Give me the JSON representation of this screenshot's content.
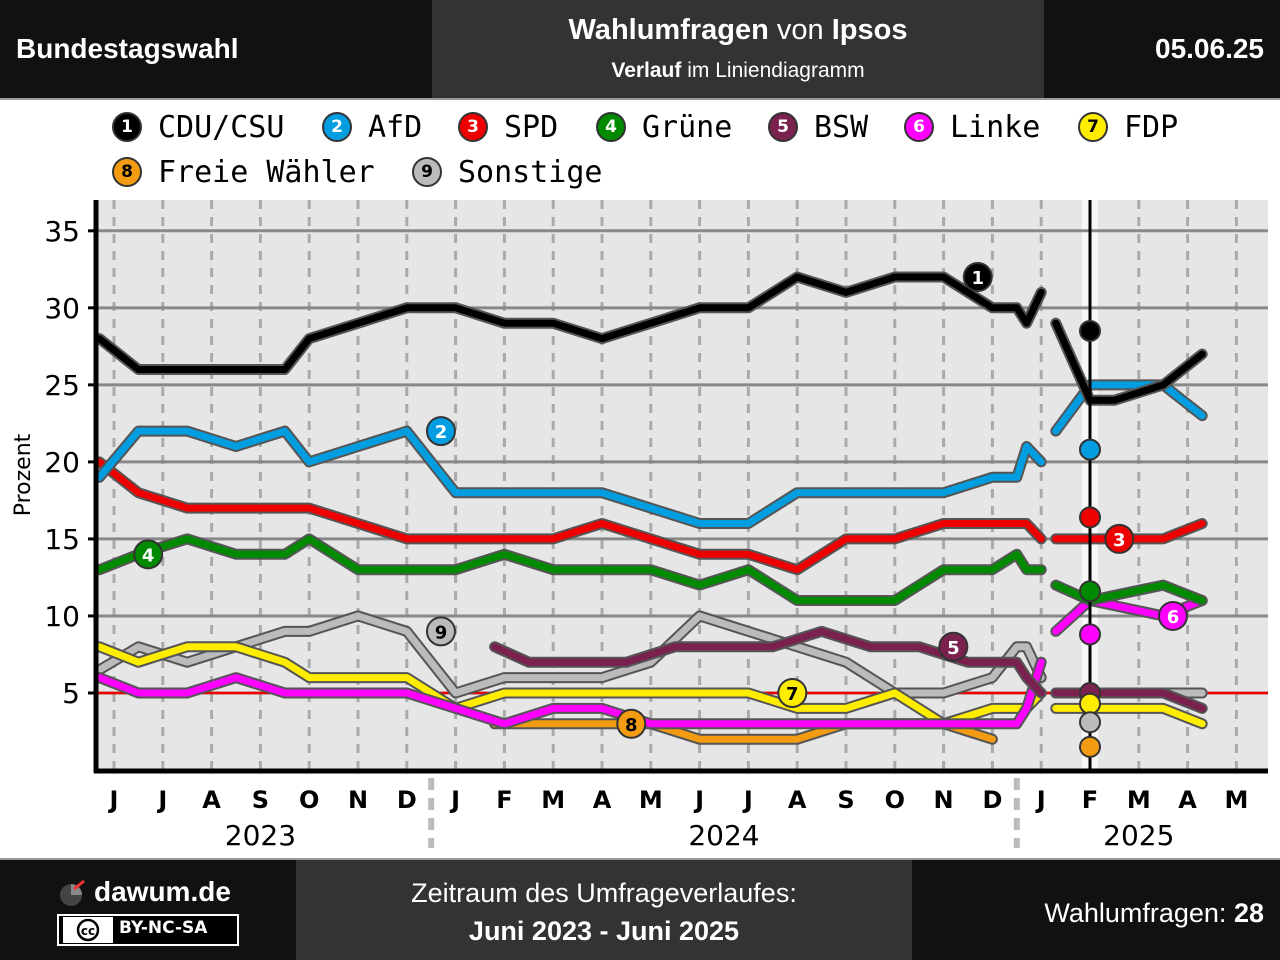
{
  "header": {
    "left": "Bundestagswahl",
    "title_bold_1": "Wahlumfragen",
    "title_mid": " von ",
    "title_bold_2": "Ipsos",
    "sub_bold": "Verlauf",
    "sub_rest": " im Liniendiagramm",
    "date": "05.06.25"
  },
  "footer": {
    "brand": "dawum.de",
    "license": "BY-NC-SA",
    "license_icon": "cc-icon",
    "period_label": "Zeitraum des Umfrageverlaufes:",
    "period_value": "Juni 2023 - Juni 2025",
    "count_label": "Wahlumfragen: ",
    "count_value": "28"
  },
  "chart_data": {
    "type": "line",
    "ylabel": "Prozent",
    "ylim": [
      0,
      37
    ],
    "yticks": [
      5,
      10,
      15,
      20,
      25,
      30,
      35
    ],
    "threshold": 5,
    "election_marker": "2025-02",
    "months": [
      "J",
      "J",
      "A",
      "S",
      "O",
      "N",
      "D",
      "J",
      "F",
      "M",
      "A",
      "M",
      "J",
      "J",
      "A",
      "S",
      "O",
      "N",
      "D",
      "J",
      "F",
      "M",
      "A",
      "M"
    ],
    "years": [
      {
        "label": "2023",
        "start": 0,
        "end": 6
      },
      {
        "label": "2024",
        "start": 7,
        "end": 18
      },
      {
        "label": "2025",
        "start": 19,
        "end": 23
      }
    ],
    "series": [
      {
        "num": "1",
        "name": "CDU/CSU",
        "color": "#000000",
        "text_color": "#ffffff",
        "pre": [
          [
            -0.3,
            28
          ],
          [
            0.5,
            26
          ],
          [
            1.5,
            26
          ],
          [
            2.5,
            26
          ],
          [
            3.5,
            26
          ],
          [
            4,
            28
          ],
          [
            5,
            29
          ],
          [
            6,
            30
          ],
          [
            7,
            30
          ],
          [
            8,
            29
          ],
          [
            9,
            29
          ],
          [
            10,
            28
          ],
          [
            11,
            29
          ],
          [
            12,
            30
          ],
          [
            13,
            30
          ],
          [
            14,
            32
          ],
          [
            15,
            31
          ],
          [
            16,
            32
          ],
          [
            17,
            32
          ],
          [
            18,
            30
          ],
          [
            18.5,
            30
          ],
          [
            18.7,
            29
          ],
          [
            19,
            31
          ]
        ],
        "post": [
          [
            19.3,
            29
          ],
          [
            20,
            24
          ],
          [
            20.5,
            24
          ],
          [
            21.5,
            25
          ],
          [
            22.3,
            27
          ]
        ],
        "result": 28.5,
        "label_at": [
          17.7,
          32
        ]
      },
      {
        "num": "2",
        "name": "AfD",
        "color": "#009ee0",
        "text_color": "#ffffff",
        "pre": [
          [
            -0.3,
            19
          ],
          [
            0.5,
            22
          ],
          [
            1.5,
            22
          ],
          [
            2.5,
            21
          ],
          [
            3.5,
            22
          ],
          [
            4,
            20
          ],
          [
            5,
            21
          ],
          [
            6,
            22
          ],
          [
            7,
            18
          ],
          [
            8,
            18
          ],
          [
            9,
            18
          ],
          [
            10,
            18
          ],
          [
            11,
            17
          ],
          [
            12,
            16
          ],
          [
            13,
            16
          ],
          [
            14,
            18
          ],
          [
            15,
            18
          ],
          [
            16,
            18
          ],
          [
            17,
            18
          ],
          [
            18,
            19
          ],
          [
            18.5,
            19
          ],
          [
            18.7,
            21
          ],
          [
            19,
            20
          ]
        ],
        "post": [
          [
            19.3,
            22
          ],
          [
            20,
            25
          ],
          [
            21.5,
            25
          ],
          [
            22.3,
            23
          ]
        ],
        "result": 20.8,
        "label_at": [
          6.7,
          22
        ]
      },
      {
        "num": "3",
        "name": "SPD",
        "color": "#ee0000",
        "text_color": "#ffffff",
        "pre": [
          [
            -0.3,
            20
          ],
          [
            0.5,
            18
          ],
          [
            1.5,
            17
          ],
          [
            2.5,
            17
          ],
          [
            3.5,
            17
          ],
          [
            4,
            17
          ],
          [
            5,
            16
          ],
          [
            6,
            15
          ],
          [
            7,
            15
          ],
          [
            8,
            15
          ],
          [
            9,
            15
          ],
          [
            10,
            16
          ],
          [
            11,
            15
          ],
          [
            12,
            14
          ],
          [
            13,
            14
          ],
          [
            14,
            13
          ],
          [
            15,
            15
          ],
          [
            16,
            15
          ],
          [
            17,
            16
          ],
          [
            18,
            16
          ],
          [
            18.5,
            16
          ],
          [
            18.7,
            16
          ],
          [
            19,
            15
          ]
        ],
        "post": [
          [
            19.3,
            15
          ],
          [
            20,
            15
          ],
          [
            21.5,
            15
          ],
          [
            22.3,
            16
          ]
        ],
        "result": 16.4,
        "label_at": [
          20.6,
          15
        ]
      },
      {
        "num": "4",
        "name": "Grüne",
        "color": "#008a00",
        "text_color": "#ffffff",
        "pre": [
          [
            -0.3,
            13
          ],
          [
            0.5,
            14
          ],
          [
            1.5,
            15
          ],
          [
            2.5,
            14
          ],
          [
            3.5,
            14
          ],
          [
            4,
            15
          ],
          [
            5,
            13
          ],
          [
            6,
            13
          ],
          [
            7,
            13
          ],
          [
            8,
            14
          ],
          [
            9,
            13
          ],
          [
            10,
            13
          ],
          [
            11,
            13
          ],
          [
            12,
            12
          ],
          [
            13,
            13
          ],
          [
            14,
            11
          ],
          [
            15,
            11
          ],
          [
            16,
            11
          ],
          [
            17,
            13
          ],
          [
            18,
            13
          ],
          [
            18.5,
            14
          ],
          [
            18.7,
            13
          ],
          [
            19,
            13
          ]
        ],
        "post": [
          [
            19.3,
            12
          ],
          [
            20,
            11
          ],
          [
            21.5,
            12
          ],
          [
            22.3,
            11
          ]
        ],
        "result": 11.6,
        "label_at": [
          0.7,
          14
        ]
      },
      {
        "num": "5",
        "name": "BSW",
        "color": "#7a2150",
        "text_color": "#ffffff",
        "pre": [
          [
            7.8,
            8
          ],
          [
            8.5,
            7
          ],
          [
            9.5,
            7
          ],
          [
            10.5,
            7
          ],
          [
            11.5,
            8
          ],
          [
            12.5,
            8
          ],
          [
            13.5,
            8
          ],
          [
            14.5,
            9
          ],
          [
            15.5,
            8
          ],
          [
            16.5,
            8
          ],
          [
            17.5,
            7
          ],
          [
            18.5,
            7
          ],
          [
            18.7,
            6
          ],
          [
            19,
            5
          ]
        ],
        "post": [
          [
            19.3,
            5
          ],
          [
            20,
            5
          ],
          [
            21.5,
            5
          ],
          [
            22.3,
            4
          ]
        ],
        "result": 5.0,
        "label_at": [
          17.2,
          8
        ]
      },
      {
        "num": "6",
        "name": "Linke",
        "color": "#ff00ff",
        "text_color": "#ffffff",
        "pre": [
          [
            -0.3,
            6
          ],
          [
            0.5,
            5
          ],
          [
            1.5,
            5
          ],
          [
            2.5,
            6
          ],
          [
            3.5,
            5
          ],
          [
            4,
            5
          ],
          [
            5,
            5
          ],
          [
            6,
            5
          ],
          [
            7,
            4
          ],
          [
            8,
            3
          ],
          [
            9,
            4
          ],
          [
            10,
            4
          ],
          [
            11,
            3
          ],
          [
            12,
            3
          ],
          [
            13,
            3
          ],
          [
            14,
            3
          ],
          [
            15,
            3
          ],
          [
            16,
            3
          ],
          [
            17,
            3
          ],
          [
            18,
            3
          ],
          [
            18.5,
            3
          ],
          [
            18.7,
            4
          ],
          [
            19,
            7
          ]
        ],
        "post": [
          [
            19.3,
            9
          ],
          [
            20,
            11
          ],
          [
            21.5,
            10
          ],
          [
            22.3,
            11
          ]
        ],
        "result": 8.8,
        "label_at": [
          21.7,
          10
        ]
      },
      {
        "num": "7",
        "name": "FDP",
        "color": "#ffed00",
        "text_color": "#000000",
        "pre": [
          [
            -0.3,
            8
          ],
          [
            0.5,
            7
          ],
          [
            1.5,
            8
          ],
          [
            2.5,
            8
          ],
          [
            3.5,
            7
          ],
          [
            4,
            6
          ],
          [
            5,
            6
          ],
          [
            6,
            6
          ],
          [
            7,
            4
          ],
          [
            8,
            5
          ],
          [
            9,
            5
          ],
          [
            10,
            5
          ],
          [
            11,
            5
          ],
          [
            12,
            5
          ],
          [
            13,
            5
          ],
          [
            14,
            4
          ],
          [
            15,
            4
          ],
          [
            16,
            5
          ],
          [
            17,
            3
          ],
          [
            18,
            4
          ],
          [
            18.5,
            4
          ],
          [
            18.7,
            4
          ],
          [
            19,
            5
          ]
        ],
        "post": [
          [
            19.3,
            4
          ],
          [
            20,
            4
          ],
          [
            21.5,
            4
          ],
          [
            22.3,
            3
          ]
        ],
        "result": 4.3,
        "label_at": [
          13.9,
          5
        ]
      },
      {
        "num": "8",
        "name": "Freie Wähler",
        "color": "#f39c12",
        "text_color": "#000000",
        "pre": [
          [
            7.8,
            3
          ],
          [
            9,
            3
          ],
          [
            10,
            3
          ],
          [
            11,
            3
          ],
          [
            12,
            2
          ],
          [
            13,
            2
          ],
          [
            14,
            2
          ],
          [
            15,
            3
          ],
          [
            16,
            3
          ],
          [
            17,
            3
          ],
          [
            18,
            2
          ]
        ],
        "post": [],
        "result": 1.5,
        "label_at": [
          10.6,
          3
        ]
      },
      {
        "num": "9",
        "name": "Sonstige",
        "color": "#bbbbbb",
        "text_color": "#000000",
        "pre": [
          [
            -0.3,
            6.5
          ],
          [
            0.5,
            8
          ],
          [
            1.5,
            7
          ],
          [
            2.5,
            8
          ],
          [
            3.5,
            9
          ],
          [
            4,
            9
          ],
          [
            5,
            10
          ],
          [
            6,
            9
          ],
          [
            7,
            5
          ],
          [
            8,
            6
          ],
          [
            9,
            6
          ],
          [
            10,
            6
          ],
          [
            11,
            7
          ],
          [
            12,
            10
          ],
          [
            13,
            9
          ],
          [
            14,
            8
          ],
          [
            15,
            7
          ],
          [
            16,
            5
          ],
          [
            17,
            5
          ],
          [
            18,
            6
          ],
          [
            18.5,
            8
          ],
          [
            18.7,
            8
          ],
          [
            19,
            6
          ]
        ],
        "post": [
          [
            19.3,
            5
          ],
          [
            20,
            5
          ],
          [
            21.5,
            5
          ],
          [
            22.3,
            5
          ]
        ],
        "result": 3.1,
        "label_at": [
          6.7,
          9
        ]
      }
    ]
  }
}
